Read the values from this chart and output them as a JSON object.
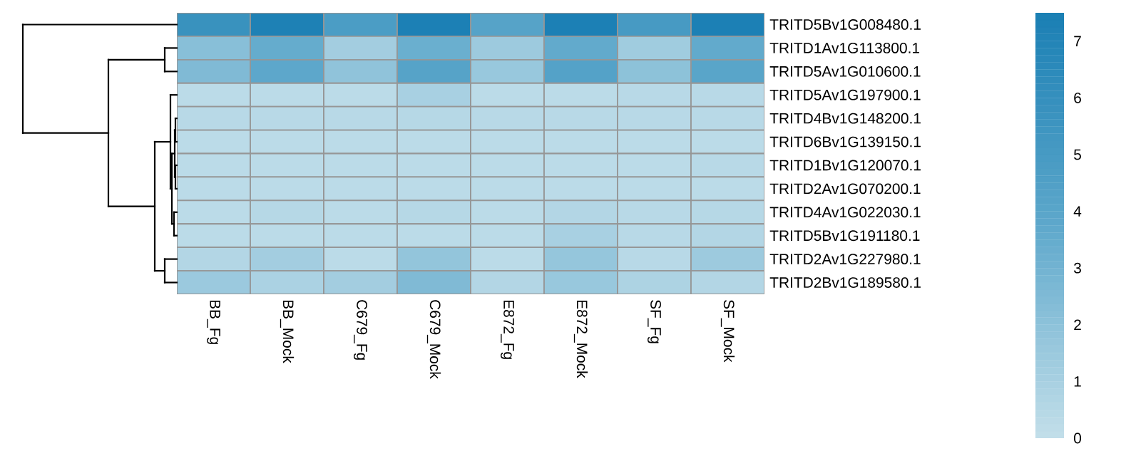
{
  "chart_data": {
    "type": "heatmap",
    "categories": [
      "BB_Fg",
      "BB_Mock",
      "C679_Fg",
      "C679_Mock",
      "E872_Fg",
      "E872_Mock",
      "SF_Fg",
      "SF_Mock"
    ],
    "y_categories": [
      "TRITD5Bv1G008480.1",
      "TRITD1Av1G113800.1",
      "TRITD5Av1G010600.1",
      "TRITD5Av1G197900.1",
      "TRITD4Bv1G148200.1",
      "TRITD6Bv1G139150.1",
      "TRITD1Bv1G120070.1",
      "TRITD2Av1G070200.1",
      "TRITD4Av1G022030.1",
      "TRITD5Bv1G191180.1",
      "TRITD2Av1G227980.1",
      "TRITD2Bv1G189580.1"
    ],
    "cells": [
      [
        5.8,
        7.3,
        4.8,
        7.4,
        4.2,
        7.4,
        5.0,
        7.4
      ],
      [
        2.2,
        3.5,
        1.2,
        3.3,
        1.4,
        3.6,
        1.3,
        3.6
      ],
      [
        2.5,
        3.8,
        1.9,
        4.2,
        1.6,
        4.3,
        2.0,
        4.0
      ],
      [
        0.3,
        0.3,
        0.3,
        1.0,
        0.3,
        0.3,
        0.4,
        0.4
      ],
      [
        0.4,
        0.4,
        0.4,
        0.5,
        0.4,
        0.4,
        0.4,
        0.4
      ],
      [
        0.3,
        0.3,
        0.3,
        0.3,
        0.3,
        0.3,
        0.3,
        0.3
      ],
      [
        0.3,
        0.3,
        0.3,
        0.3,
        0.3,
        0.3,
        0.3,
        0.4
      ],
      [
        0.3,
        0.3,
        0.3,
        0.3,
        0.3,
        0.3,
        0.3,
        0.3
      ],
      [
        0.3,
        0.5,
        0.3,
        0.5,
        0.3,
        0.6,
        0.4,
        0.5
      ],
      [
        0.3,
        0.3,
        0.3,
        0.3,
        0.3,
        1.0,
        0.4,
        0.6
      ],
      [
        0.6,
        1.2,
        0.3,
        1.8,
        0.3,
        1.7,
        0.4,
        1.4
      ],
      [
        1.5,
        0.9,
        1.2,
        2.5,
        0.6,
        1.6,
        0.8,
        0.6
      ]
    ],
    "clim": [
      0,
      7.5
    ],
    "cticks": [
      0,
      1,
      2,
      3,
      4,
      5,
      6,
      7
    ]
  }
}
